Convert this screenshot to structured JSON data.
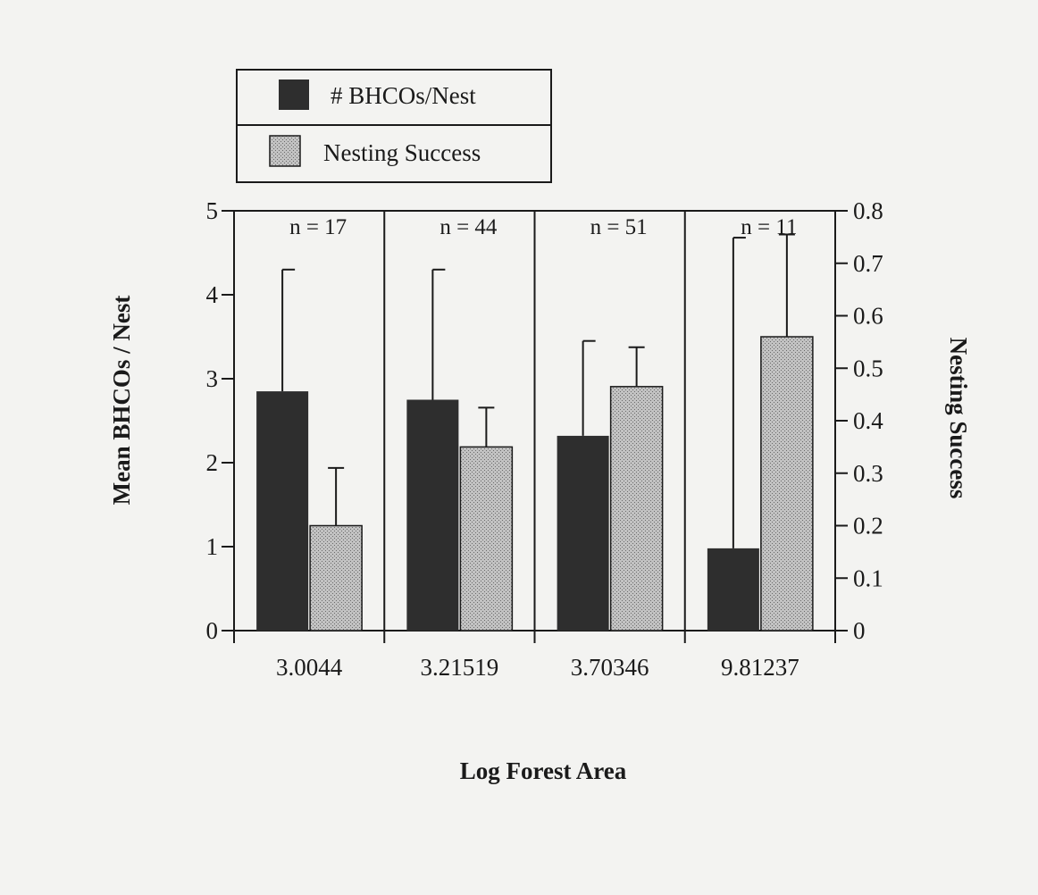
{
  "chart_data": {
    "type": "bar",
    "title": "",
    "xlabel": "Log Forest Area",
    "ylabel": "Mean BHCOs / Nest",
    "y2label": "Nesting Success",
    "categories": [
      "3.0044",
      "3.21519",
      "3.70346",
      "9.81237"
    ],
    "annotations": [
      "n = 17",
      "n = 44",
      "n = 51",
      "n = 11"
    ],
    "ylim": [
      0,
      5
    ],
    "yticks": [
      "0",
      "1",
      "2",
      "3",
      "4",
      "5"
    ],
    "y2lim": [
      0,
      0.8
    ],
    "y2ticks": [
      "0",
      "0.1",
      "0.2",
      "0.3",
      "0.4",
      "0.5",
      "0.6",
      "0.7",
      "0.8"
    ],
    "legend_position": "top-left, above plot",
    "grid": false,
    "series": [
      {
        "name": "# BHCOs/Nest",
        "axis": "left",
        "color": "#2e2e2e",
        "values": [
          2.85,
          2.75,
          2.32,
          0.98
        ],
        "error_upper": [
          4.3,
          4.3,
          3.45,
          4.68
        ]
      },
      {
        "name": "Nesting Success",
        "axis": "right",
        "color": "#b4b4b4",
        "values": [
          0.2,
          0.35,
          0.465,
          0.56
        ],
        "error_upper": [
          0.31,
          0.425,
          0.54,
          0.755
        ]
      }
    ]
  }
}
